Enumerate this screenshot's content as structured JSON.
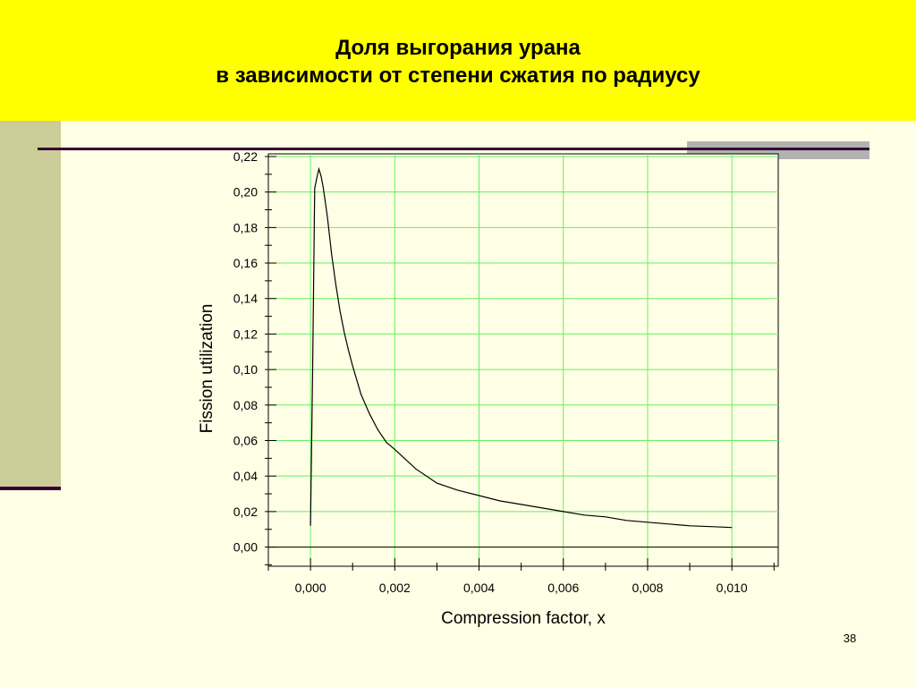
{
  "slide": {
    "title_line1": "Доля выгорания урана",
    "title_line2": "в зависимости от степени сжатия по радиусу",
    "page_number": "38",
    "colors": {
      "title_background": "#ffff00",
      "background": "#ffffe5",
      "side_strip": "#cccc99",
      "accent_dark": "#330033",
      "grey_block": "#b2b2b2"
    }
  },
  "chart_data": {
    "type": "line",
    "title": "",
    "xlabel": "Compression factor, x",
    "ylabel": "Fission utilization",
    "xlim": [
      -0.001,
      0.0111
    ],
    "ylim": [
      -0.0108,
      0.2215
    ],
    "grid": true,
    "grid_color": "#66ee66",
    "line_color": "#000000",
    "x_ticks": [
      0.0,
      0.002,
      0.004,
      0.006,
      0.008,
      0.01
    ],
    "x_tick_labels": [
      "0,000",
      "0,002",
      "0,004",
      "0,006",
      "0,008",
      "0,010"
    ],
    "y_ticks": [
      0.0,
      0.02,
      0.04,
      0.06,
      0.08,
      0.1,
      0.12,
      0.14,
      0.16,
      0.18,
      0.2,
      0.22
    ],
    "y_tick_labels": [
      "0,00",
      "0,02",
      "0,04",
      "0,06",
      "0,08",
      "0,10",
      "0,12",
      "0,14",
      "0,16",
      "0,18",
      "0,20",
      "0,22"
    ],
    "series": [
      {
        "x": [
          0.0,
          5e-05,
          0.0001,
          0.00015,
          0.0002,
          0.00025,
          0.0003,
          0.0004,
          0.0005,
          0.0006,
          0.0007,
          0.0008,
          0.0009,
          0.001,
          0.0012,
          0.0014,
          0.0016,
          0.0018,
          0.002,
          0.0025,
          0.003,
          0.0035,
          0.004,
          0.0045,
          0.005,
          0.0055,
          0.006,
          0.0065,
          0.007,
          0.0075,
          0.008,
          0.0085,
          0.009,
          0.0095,
          0.01
        ],
        "y": [
          0.012,
          0.1,
          0.202,
          0.208,
          0.213,
          0.209,
          0.203,
          0.186,
          0.165,
          0.148,
          0.133,
          0.121,
          0.111,
          0.102,
          0.086,
          0.075,
          0.066,
          0.059,
          0.055,
          0.044,
          0.036,
          0.032,
          0.029,
          0.026,
          0.024,
          0.022,
          0.02,
          0.018,
          0.017,
          0.015,
          0.014,
          0.013,
          0.012,
          0.0115,
          0.011
        ]
      }
    ]
  }
}
